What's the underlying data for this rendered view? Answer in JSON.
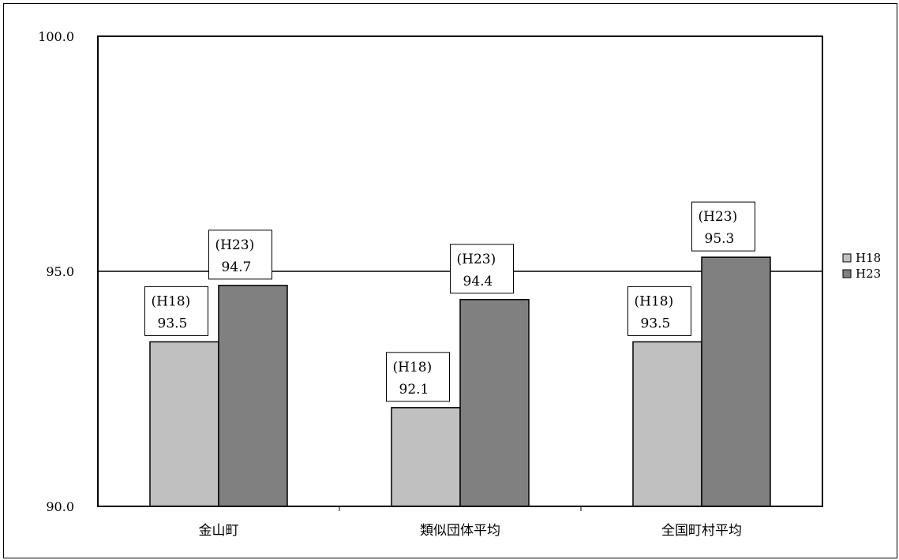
{
  "chart_data": {
    "type": "bar",
    "categories": [
      "金山町",
      "類似団体平均",
      "全国町村平均"
    ],
    "series": [
      {
        "name": "H18",
        "values": [
          93.5,
          92.1,
          93.5
        ],
        "label_tag": "(H18)",
        "label_values": [
          "93.5",
          "92.1",
          "93.5"
        ],
        "color": "#c0c0c0"
      },
      {
        "name": "H23",
        "values": [
          94.7,
          94.4,
          95.3
        ],
        "label_tag": "(H23)",
        "label_values": [
          "94.7",
          "94.4",
          "95.3"
        ],
        "color": "#808080"
      }
    ],
    "ylim": [
      90.0,
      100.0
    ],
    "yticks": [
      90.0,
      95.0,
      100.0
    ],
    "ytick_labels": [
      "90.0",
      "95.0",
      "100.0"
    ],
    "grid": true,
    "legend": "right",
    "title": "",
    "xlabel": "",
    "ylabel": ""
  }
}
